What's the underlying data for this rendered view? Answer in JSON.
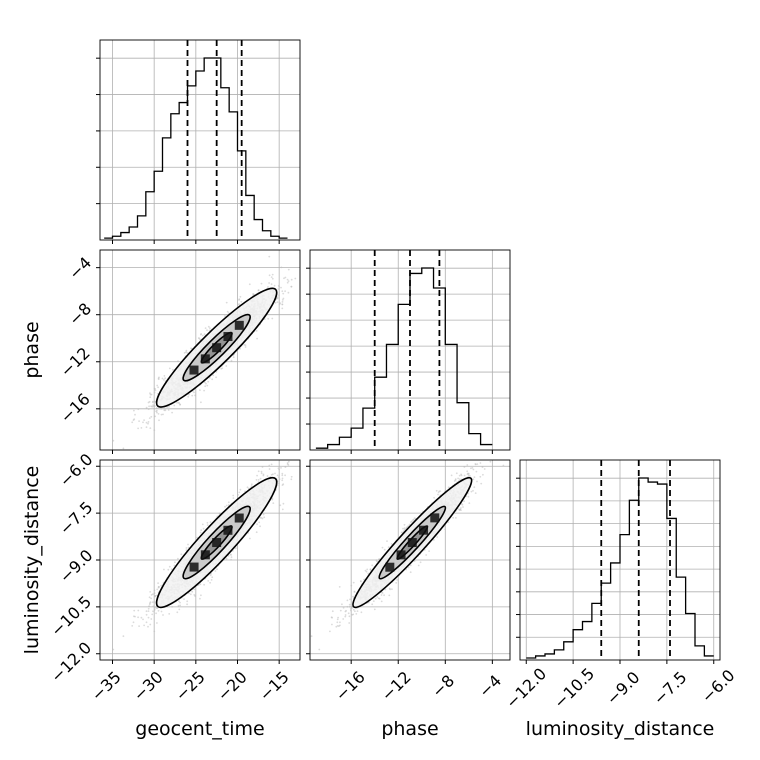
{
  "chart_data": [
    {
      "type": "histogram",
      "panel": "geocent_time (1D marginal)",
      "parameter": "geocent_time",
      "xlim": [
        -36.5,
        -12.5
      ],
      "bins": [
        -35.5,
        -34.5,
        -33.5,
        -32.5,
        -31.5,
        -30.5,
        -29.5,
        -28.5,
        -27.5,
        -26.5,
        -25.5,
        -24.5,
        -23.5,
        -22.5,
        -21.5,
        -20.5,
        -19.5,
        -18.5,
        -17.5,
        -16.5,
        -15.5,
        -14.5
      ],
      "heights": [
        0.01,
        0.02,
        0.04,
        0.07,
        0.13,
        0.26,
        0.37,
        0.55,
        0.68,
        0.74,
        0.83,
        0.91,
        0.98,
        0.98,
        0.82,
        0.69,
        0.48,
        0.24,
        0.11,
        0.05,
        0.02,
        0.01
      ],
      "quantiles": [
        -26.0,
        -22.5,
        -19.5
      ],
      "grid": true
    },
    {
      "type": "scatter-contour",
      "panel": "phase vs geocent_time",
      "x_parameter": "geocent_time",
      "y_parameter": "phase",
      "xlim": [
        -36.5,
        -12.5
      ],
      "ylim": [
        -19.5,
        -2.5
      ],
      "yticks": [
        "−4",
        "−8",
        "−12",
        "−16"
      ],
      "ylabel": "phase",
      "grid": true
    },
    {
      "type": "histogram",
      "panel": "phase (1D marginal)",
      "parameter": "phase",
      "xlim": [
        -19.5,
        -2.5
      ],
      "bins": [
        -18.5,
        -17.5,
        -16.5,
        -15.5,
        -14.5,
        -13.5,
        -12.5,
        -11.5,
        -10.5,
        -9.5,
        -8.5,
        -7.5,
        -6.5,
        -5.5,
        -4.5
      ],
      "heights": [
        0.01,
        0.03,
        0.07,
        0.12,
        0.23,
        0.4,
        0.58,
        0.8,
        0.97,
        1.0,
        0.89,
        0.58,
        0.26,
        0.09,
        0.03
      ],
      "quantiles": [
        -14.0,
        -11.0,
        -8.5
      ],
      "grid": true
    },
    {
      "type": "scatter-contour",
      "panel": "luminosity_distance vs geocent_time",
      "x_parameter": "geocent_time",
      "y_parameter": "luminosity_distance",
      "xlim": [
        -36.5,
        -12.5
      ],
      "ylim": [
        -12.2,
        -5.8
      ],
      "xticks": [
        "−35",
        "−30",
        "−25",
        "−20",
        "−15"
      ],
      "yticks": [
        "−6.0",
        "−7.5",
        "−9.0",
        "−10.5",
        "−12.0"
      ],
      "xlabel": "geocent_time",
      "ylabel": "luminosity_distance",
      "grid": true
    },
    {
      "type": "scatter-contour",
      "panel": "luminosity_distance vs phase",
      "x_parameter": "phase",
      "y_parameter": "luminosity_distance",
      "xlim": [
        -19.5,
        -2.5
      ],
      "ylim": [
        -12.2,
        -5.8
      ],
      "xticks": [
        "−16",
        "−12",
        "−8",
        "−4"
      ],
      "xlabel": "phase",
      "grid": true
    },
    {
      "type": "histogram",
      "panel": "luminosity_distance (1D marginal)",
      "parameter": "luminosity_distance",
      "xlim": [
        -12.2,
        -5.8
      ],
      "bins": [
        -11.85,
        -11.55,
        -11.25,
        -10.95,
        -10.65,
        -10.35,
        -10.05,
        -9.75,
        -9.45,
        -9.15,
        -8.85,
        -8.55,
        -8.25,
        -7.95,
        -7.65,
        -7.35,
        -7.05,
        -6.75,
        -6.45,
        -6.15
      ],
      "heights": [
        0.01,
        0.02,
        0.03,
        0.05,
        0.09,
        0.15,
        0.19,
        0.28,
        0.38,
        0.48,
        0.62,
        0.79,
        0.9,
        0.88,
        0.87,
        0.7,
        0.41,
        0.23,
        0.07,
        0.02
      ],
      "quantiles": [
        -9.6,
        -8.4,
        -7.4
      ],
      "xticks": [
        "−12.0",
        "−10.5",
        "−9.0",
        "−7.5",
        "−6.0"
      ],
      "xlabel": "luminosity_distance",
      "grid": true
    }
  ],
  "colors": {
    "line": "#000000",
    "grid": "#b0b0b0",
    "points": "#bdbdbd",
    "contour_fill_outer": "#f2f2f2",
    "contour_fill_mid": "#c4c4c4",
    "contour_fill_inner": "#8a8a8a",
    "background": "#ffffff"
  }
}
